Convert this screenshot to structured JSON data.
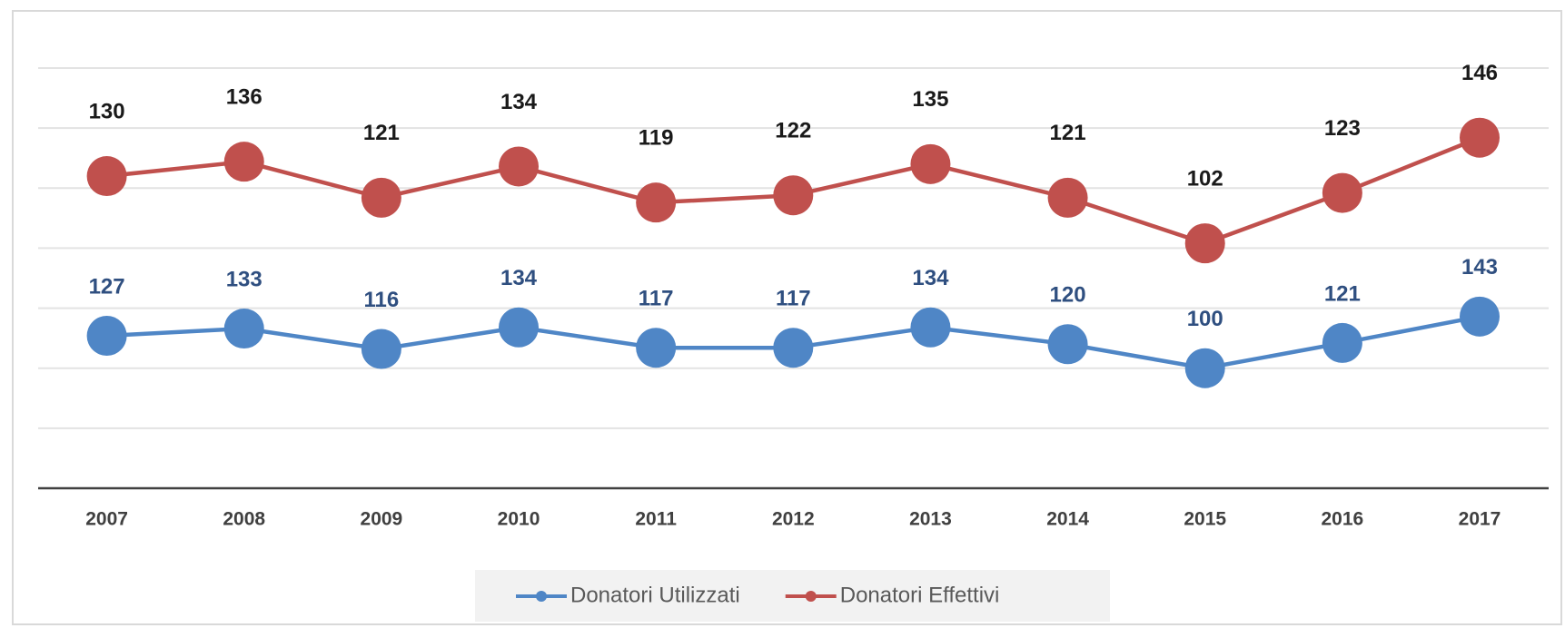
{
  "chart_data": {
    "type": "line",
    "categories": [
      "2007",
      "2008",
      "2009",
      "2010",
      "2011",
      "2012",
      "2013",
      "2014",
      "2015",
      "2016",
      "2017"
    ],
    "series": [
      {
        "name": "Donatori Utilizzati",
        "color": "#4f86c6",
        "label_color": "#2f4f80",
        "values": [
          127,
          133,
          116,
          134,
          117,
          117,
          134,
          120,
          100,
          121,
          143
        ]
      },
      {
        "name": "Donatori Effettivi",
        "color": "#c0504d",
        "label_color": "#1a1a1a",
        "axis": "y2",
        "values": [
          130,
          136,
          121,
          134,
          119,
          122,
          135,
          121,
          102,
          123,
          146
        ]
      }
    ],
    "ylim": [
      0,
      350
    ],
    "yticks": [
      0,
      50,
      100,
      150,
      200,
      250,
      300,
      350
    ],
    "y2lim": [
      0,
      175
    ],
    "grid": true,
    "legend": "bottom"
  }
}
